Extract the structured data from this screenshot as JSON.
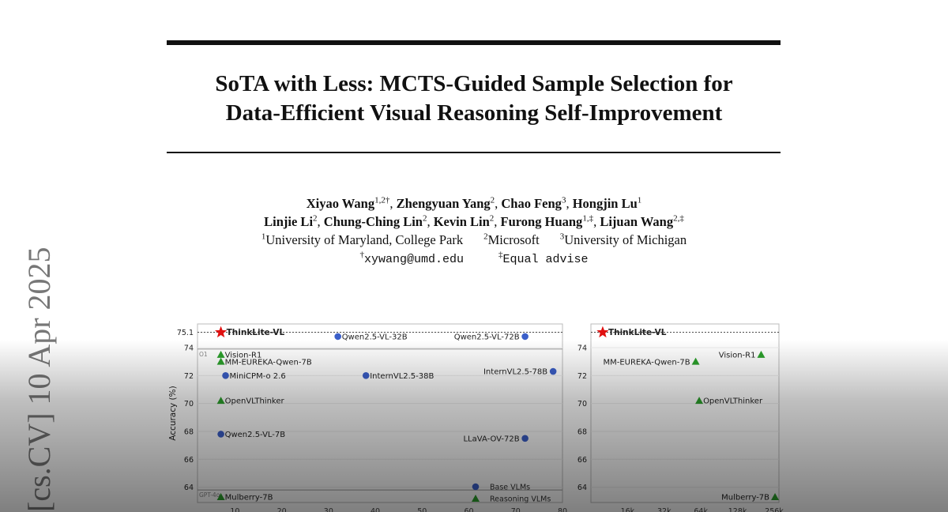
{
  "title_lines": [
    "SoTA with Less: MCTS-Guided Sample Selection for",
    "Data-Efficient Visual Reasoning Self-Improvement"
  ],
  "authors_line1": [
    {
      "name": "Xiyao Wang",
      "sup": "1,2†"
    },
    {
      "name": "Zhengyuan Yang",
      "sup": "2"
    },
    {
      "name": "Chao Feng",
      "sup": "3"
    },
    {
      "name": "Hongjin Lu",
      "sup": "1"
    }
  ],
  "authors_line2": [
    {
      "name": "Linjie Li",
      "sup": "2"
    },
    {
      "name": "Chung-Ching Lin",
      "sup": "2"
    },
    {
      "name": "Kevin Lin",
      "sup": "2"
    },
    {
      "name": "Furong Huang",
      "sup": "1,‡"
    },
    {
      "name": "Lijuan Wang",
      "sup": "2,‡"
    }
  ],
  "affiliations": [
    {
      "sup": "1",
      "name": "University of Maryland, College Park"
    },
    {
      "sup": "2",
      "name": "Microsoft"
    },
    {
      "sup": "3",
      "name": "University of Michigan"
    }
  ],
  "contact": {
    "email_mark": "†",
    "email": "xywang@umd.edu",
    "equal_mark": "‡",
    "equal_text": "Equal advise"
  },
  "arxiv_stamp": "[cs.CV]  10 Apr 2025",
  "colors": {
    "base": "#3b5fc9",
    "reasoning": "#2ca02c",
    "star": "#e01010"
  },
  "chart_data": [
    {
      "type": "scatter",
      "ylabel": "Accuracy (%)",
      "ylim": [
        62.9,
        75.7
      ],
      "xlim": [
        2,
        80
      ],
      "y_ticks": [
        "64",
        "66",
        "68",
        "70",
        "72",
        "74",
        "75.1"
      ],
      "y_tick_values": [
        64,
        66,
        68,
        70,
        72,
        74,
        75.1
      ],
      "x_ticks": [
        "10",
        "20",
        "30",
        "40",
        "50",
        "60",
        "70",
        "80"
      ],
      "x_tick_values": [
        10,
        20,
        30,
        40,
        50,
        60,
        70,
        80
      ],
      "reference_lines": [
        {
          "label": "O1",
          "y": 73.9
        },
        {
          "label": "GPT-4o",
          "y": 63.8
        }
      ],
      "legend": {
        "placement": "bottom-right",
        "entries": [
          {
            "label": "Base VLMs",
            "marker": "circle"
          },
          {
            "label": "Reasoning VLMs",
            "marker": "triangle"
          }
        ]
      },
      "points": [
        {
          "label": "ThinkLite-VL",
          "x": 7,
          "y": 75.1,
          "marker": "star"
        },
        {
          "label": "Vision-R1",
          "x": 7,
          "y": 73.5,
          "marker": "triangle"
        },
        {
          "label": "MM-EUREKA-Qwen-7B",
          "x": 7,
          "y": 73.0,
          "marker": "triangle"
        },
        {
          "label": "MiniCPM-o 2.6",
          "x": 8,
          "y": 72.0,
          "marker": "circle"
        },
        {
          "label": "OpenVLThinker",
          "x": 7,
          "y": 70.2,
          "marker": "triangle"
        },
        {
          "label": "Qwen2.5-VL-7B",
          "x": 7,
          "y": 67.8,
          "marker": "circle"
        },
        {
          "label": "Mulberry-7B",
          "x": 7,
          "y": 63.3,
          "marker": "triangle"
        },
        {
          "label": "Qwen2.5-VL-32B",
          "x": 32,
          "y": 74.8,
          "marker": "circle"
        },
        {
          "label": "InternVL2.5-38B",
          "x": 38,
          "y": 72.0,
          "marker": "circle"
        },
        {
          "label": "Qwen2.5-VL-72B",
          "x": 72,
          "y": 74.8,
          "marker": "circle"
        },
        {
          "label": "InternVL2.5-78B",
          "x": 78,
          "y": 72.3,
          "marker": "circle"
        },
        {
          "label": "LLaVA-OV-72B",
          "x": 72,
          "y": 67.5,
          "marker": "circle"
        }
      ]
    },
    {
      "type": "scatter",
      "ylim": [
        62.9,
        75.7
      ],
      "y_ticks": [
        "64",
        "66",
        "68",
        "70",
        "72",
        "74"
      ],
      "y_tick_values": [
        64,
        66,
        68,
        70,
        72,
        74
      ],
      "x_ticks": [
        "16k",
        "32k",
        "64k",
        "128k",
        "256k"
      ],
      "x_tick_values": [
        16,
        32,
        64,
        128,
        256
      ],
      "xscale": "log",
      "xlim": [
        8,
        280
      ],
      "points": [
        {
          "label": "ThinkLite-VL",
          "x": 10,
          "y": 75.1,
          "marker": "star"
        },
        {
          "label": "Vision-R1",
          "x": 200,
          "y": 73.5,
          "marker": "triangle"
        },
        {
          "label": "MM-EUREKA-Qwen-7B",
          "x": 58,
          "y": 73.0,
          "marker": "triangle"
        },
        {
          "label": "OpenVLThinker",
          "x": 62,
          "y": 70.2,
          "marker": "triangle"
        },
        {
          "label": "Mulberry-7B",
          "x": 260,
          "y": 63.3,
          "marker": "triangle"
        }
      ]
    }
  ]
}
